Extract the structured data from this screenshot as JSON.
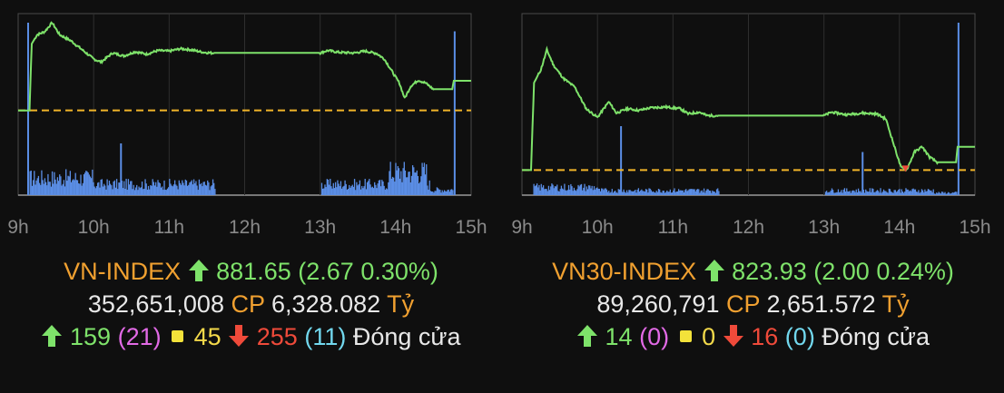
{
  "chart_data": [
    {
      "type": "line",
      "title": "",
      "x_ticks": [
        "9h",
        "10h",
        "11h",
        "12h",
        "13h",
        "14h",
        "15h"
      ],
      "reference_price": 879.0,
      "ylim": [
        865,
        895
      ],
      "price_series": [
        {
          "t": 9.0,
          "v": 879.0
        },
        {
          "t": 9.15,
          "v": 879.0
        },
        {
          "t": 9.18,
          "v": 890.0
        },
        {
          "t": 9.25,
          "v": 891.5
        },
        {
          "t": 9.35,
          "v": 892.0
        },
        {
          "t": 9.45,
          "v": 893.5
        },
        {
          "t": 9.55,
          "v": 891.5
        },
        {
          "t": 9.7,
          "v": 890.5
        },
        {
          "t": 9.85,
          "v": 889.0
        },
        {
          "t": 10.0,
          "v": 887.5
        },
        {
          "t": 10.1,
          "v": 887.0
        },
        {
          "t": 10.25,
          "v": 888.5
        },
        {
          "t": 10.4,
          "v": 888.0
        },
        {
          "t": 10.55,
          "v": 888.7
        },
        {
          "t": 10.7,
          "v": 888.3
        },
        {
          "t": 10.85,
          "v": 888.9
        },
        {
          "t": 11.0,
          "v": 888.8
        },
        {
          "t": 11.15,
          "v": 889.2
        },
        {
          "t": 11.3,
          "v": 889.0
        },
        {
          "t": 11.45,
          "v": 888.6
        },
        {
          "t": 11.55,
          "v": 888.5
        },
        {
          "t": 12.0,
          "v": 888.5
        },
        {
          "t": 13.0,
          "v": 888.5
        },
        {
          "t": 13.1,
          "v": 888.9
        },
        {
          "t": 13.25,
          "v": 888.6
        },
        {
          "t": 13.45,
          "v": 888.5
        },
        {
          "t": 13.6,
          "v": 888.8
        },
        {
          "t": 13.75,
          "v": 888.4
        },
        {
          "t": 13.85,
          "v": 887.5
        },
        {
          "t": 13.95,
          "v": 885.5
        },
        {
          "t": 14.05,
          "v": 883.5
        },
        {
          "t": 14.12,
          "v": 881.0
        },
        {
          "t": 14.2,
          "v": 883.0
        },
        {
          "t": 14.3,
          "v": 884.0
        },
        {
          "t": 14.4,
          "v": 883.5
        },
        {
          "t": 14.5,
          "v": 882.5
        },
        {
          "t": 14.75,
          "v": 882.5
        },
        {
          "t": 14.77,
          "v": 883.9
        },
        {
          "t": 15.0,
          "v": 883.9
        }
      ],
      "volume_spikes": [
        {
          "t": 9.12,
          "v": 100
        },
        {
          "t": 10.35,
          "v": 30
        },
        {
          "t": 14.77,
          "v": 95
        }
      ],
      "index_name": "VN-INDEX",
      "index_value": "881.65",
      "change": "2.67",
      "change_pct": "0.30%",
      "volume": "352,651,008",
      "volume_unit": "CP",
      "turnover": "6,328.082",
      "turnover_unit": "Tỷ",
      "advancers": "159",
      "ceiling": "21",
      "unchanged": "45",
      "decliners": "255",
      "floor": "11",
      "status": "Đóng cửa",
      "colors": {
        "line": "#7ee26a",
        "reference": "#f0b429",
        "volume": "#5b8ee6",
        "accent_red": "#ef4a3a"
      }
    },
    {
      "type": "line",
      "title": "",
      "x_ticks": [
        "9h",
        "10h",
        "11h",
        "12h",
        "13h",
        "14h",
        "15h"
      ],
      "reference_price": 821.9,
      "ylim": [
        819,
        840
      ],
      "price_series": [
        {
          "t": 9.0,
          "v": 821.9
        },
        {
          "t": 9.12,
          "v": 821.9
        },
        {
          "t": 9.16,
          "v": 832.0
        },
        {
          "t": 9.25,
          "v": 833.5
        },
        {
          "t": 9.33,
          "v": 835.8
        },
        {
          "t": 9.42,
          "v": 834.0
        },
        {
          "t": 9.55,
          "v": 832.5
        },
        {
          "t": 9.7,
          "v": 831.5
        },
        {
          "t": 9.85,
          "v": 829.0
        },
        {
          "t": 10.0,
          "v": 828.0
        },
        {
          "t": 10.15,
          "v": 829.8
        },
        {
          "t": 10.25,
          "v": 828.5
        },
        {
          "t": 10.4,
          "v": 829.0
        },
        {
          "t": 10.55,
          "v": 828.8
        },
        {
          "t": 10.7,
          "v": 829.1
        },
        {
          "t": 10.9,
          "v": 829.2
        },
        {
          "t": 11.1,
          "v": 829.0
        },
        {
          "t": 11.2,
          "v": 828.4
        },
        {
          "t": 11.35,
          "v": 828.6
        },
        {
          "t": 11.45,
          "v": 828.2
        },
        {
          "t": 12.0,
          "v": 828.2
        },
        {
          "t": 13.0,
          "v": 828.2
        },
        {
          "t": 13.1,
          "v": 828.6
        },
        {
          "t": 13.3,
          "v": 828.3
        },
        {
          "t": 13.5,
          "v": 828.5
        },
        {
          "t": 13.7,
          "v": 828.4
        },
        {
          "t": 13.82,
          "v": 827.8
        },
        {
          "t": 13.92,
          "v": 825.0
        },
        {
          "t": 14.02,
          "v": 822.2
        },
        {
          "t": 14.1,
          "v": 822.0
        },
        {
          "t": 14.2,
          "v": 824.0
        },
        {
          "t": 14.3,
          "v": 824.6
        },
        {
          "t": 14.4,
          "v": 823.4
        },
        {
          "t": 14.5,
          "v": 822.8
        },
        {
          "t": 14.75,
          "v": 822.8
        },
        {
          "t": 14.77,
          "v": 824.6
        },
        {
          "t": 15.0,
          "v": 824.6
        }
      ],
      "volume_spikes": [
        {
          "t": 10.3,
          "v": 40
        },
        {
          "t": 13.5,
          "v": 25
        },
        {
          "t": 14.77,
          "v": 100
        }
      ],
      "index_name": "VN30-INDEX",
      "index_value": "823.93",
      "change": "2.00",
      "change_pct": "0.24%",
      "volume": "89,260,791",
      "volume_unit": "CP",
      "turnover": "2,651.572",
      "turnover_unit": "Tỷ",
      "advancers": "14",
      "ceiling": "0",
      "unchanged": "0",
      "decliners": "16",
      "floor": "0",
      "status": "Đóng cửa",
      "colors": {
        "line": "#7ee26a",
        "reference": "#f0b429",
        "volume": "#5b8ee6",
        "accent_red": "#ef4a3a"
      }
    }
  ]
}
